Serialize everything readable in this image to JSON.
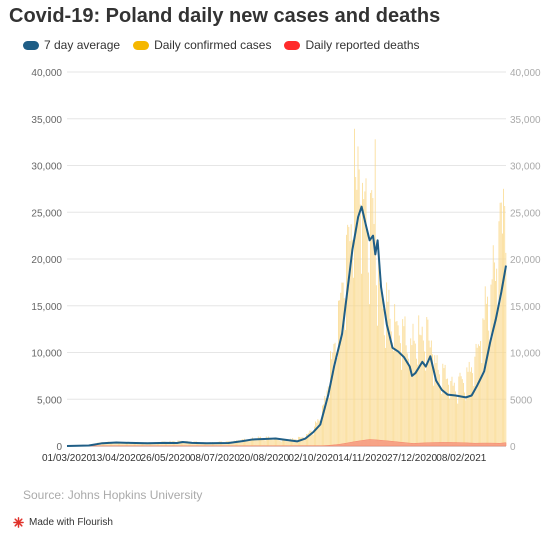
{
  "title": "Covid-19: Poland daily new cases and deaths",
  "source": "Source: Johns Hopkins University",
  "branding": "Made with Flourish",
  "colors": {
    "avg": "#1f5e86",
    "cases": "#f5b700",
    "cases_fill": "#f9d88b",
    "deaths": "#ff2b2b",
    "deaths_fill": "#f79c82"
  },
  "chart_data": {
    "type": "bar",
    "legend": [
      "7 day average",
      "Daily confirmed cases",
      "Daily reported deaths"
    ],
    "ylim": [
      0,
      40000
    ],
    "y_ticks_left": [
      "0",
      "5,000",
      "10,000",
      "15,000",
      "20,000",
      "25,000",
      "30,000",
      "35,000",
      "40,000"
    ],
    "y_ticks_right": [
      "0",
      "5000",
      "10,000",
      "15,000",
      "20,000",
      "25,000",
      "30,000",
      "35,000",
      "40,000"
    ],
    "x_ticks": [
      "01/03/2020",
      "13/04/2020",
      "26/05/2020",
      "08/07/2020",
      "20/08/2020",
      "02/10/2020",
      "14/11/2020",
      "27/12/2020",
      "08/02/2021"
    ],
    "x_start": "2020-03-01",
    "x_end": "2021-03-19",
    "series": [
      {
        "name": "7 day average",
        "type": "line",
        "points": [
          [
            "2020-03-01",
            0
          ],
          [
            "2020-03-20",
            50
          ],
          [
            "2020-04-01",
            300
          ],
          [
            "2020-04-13",
            380
          ],
          [
            "2020-04-25",
            330
          ],
          [
            "2020-05-10",
            300
          ],
          [
            "2020-05-26",
            340
          ],
          [
            "2020-06-05",
            320
          ],
          [
            "2020-06-10",
            430
          ],
          [
            "2020-06-18",
            330
          ],
          [
            "2020-07-01",
            300
          ],
          [
            "2020-07-20",
            320
          ],
          [
            "2020-08-01",
            520
          ],
          [
            "2020-08-10",
            700
          ],
          [
            "2020-08-20",
            750
          ],
          [
            "2020-08-30",
            800
          ],
          [
            "2020-09-08",
            650
          ],
          [
            "2020-09-18",
            500
          ],
          [
            "2020-09-25",
            800
          ],
          [
            "2020-10-02",
            1500
          ],
          [
            "2020-10-08",
            2300
          ],
          [
            "2020-10-15",
            5500
          ],
          [
            "2020-10-20",
            8500
          ],
          [
            "2020-10-27",
            12000
          ],
          [
            "2020-11-01",
            17000
          ],
          [
            "2020-11-05",
            21000
          ],
          [
            "2020-11-10",
            24500
          ],
          [
            "2020-11-13",
            25600
          ],
          [
            "2020-11-17",
            23500
          ],
          [
            "2020-11-20",
            22000
          ],
          [
            "2020-11-23",
            22500
          ],
          [
            "2020-11-25",
            20500
          ],
          [
            "2020-11-27",
            22000
          ],
          [
            "2020-11-30",
            17000
          ],
          [
            "2020-12-05",
            13000
          ],
          [
            "2020-12-10",
            10500
          ],
          [
            "2020-12-15",
            10100
          ],
          [
            "2020-12-20",
            9500
          ],
          [
            "2020-12-25",
            8500
          ],
          [
            "2020-12-27",
            7500
          ],
          [
            "2020-12-30",
            7800
          ],
          [
            "2021-01-05",
            9000
          ],
          [
            "2021-01-08",
            8500
          ],
          [
            "2021-01-12",
            9600
          ],
          [
            "2021-01-17",
            7000
          ],
          [
            "2021-01-22",
            6000
          ],
          [
            "2021-01-27",
            5500
          ],
          [
            "2021-02-03",
            5400
          ],
          [
            "2021-02-12",
            5200
          ],
          [
            "2021-02-17",
            5400
          ],
          [
            "2021-02-22",
            6500
          ],
          [
            "2021-02-28",
            8000
          ],
          [
            "2021-03-05",
            11000
          ],
          [
            "2021-03-10",
            13500
          ],
          [
            "2021-03-15",
            16500
          ],
          [
            "2021-03-19",
            19300
          ]
        ]
      },
      {
        "name": "Daily confirmed cases",
        "type": "bar",
        "peak": [
          "2020-11-25",
          32800
        ],
        "anchors": [
          [
            "2020-03-01",
            0
          ],
          [
            "2020-03-20",
            80
          ],
          [
            "2020-04-01",
            380
          ],
          [
            "2020-04-13",
            400
          ],
          [
            "2020-05-10",
            330
          ],
          [
            "2020-06-10",
            500
          ],
          [
            "2020-07-01",
            300
          ],
          [
            "2020-08-01",
            600
          ],
          [
            "2020-08-20",
            900
          ],
          [
            "2020-09-10",
            600
          ],
          [
            "2020-09-25",
            1000
          ],
          [
            "2020-10-02",
            1800
          ],
          [
            "2020-10-10",
            3500
          ],
          [
            "2020-10-17",
            8000
          ],
          [
            "2020-10-24",
            13000
          ],
          [
            "2020-10-31",
            20000
          ],
          [
            "2020-11-07",
            27800
          ],
          [
            "2020-11-12",
            27000
          ],
          [
            "2020-11-17",
            24500
          ],
          [
            "2020-11-24",
            22000
          ],
          [
            "2020-12-01",
            15000
          ],
          [
            "2020-12-10",
            13000
          ],
          [
            "2020-12-18",
            12500
          ],
          [
            "2020-12-27",
            10500
          ],
          [
            "2021-01-05",
            12000
          ],
          [
            "2021-01-12",
            11000
          ],
          [
            "2021-01-20",
            7500
          ],
          [
            "2021-02-01",
            6500
          ],
          [
            "2021-02-10",
            6800
          ],
          [
            "2021-02-20",
            9000
          ],
          [
            "2021-03-01",
            14000
          ],
          [
            "2021-03-08",
            17500
          ],
          [
            "2021-03-13",
            21000
          ],
          [
            "2021-03-19",
            27300
          ]
        ]
      },
      {
        "name": "Daily reported deaths",
        "type": "area",
        "anchors": [
          [
            "2020-03-01",
            0
          ],
          [
            "2020-04-15",
            25
          ],
          [
            "2020-09-01",
            15
          ],
          [
            "2020-10-10",
            40
          ],
          [
            "2020-10-24",
            180
          ],
          [
            "2020-11-07",
            400
          ],
          [
            "2020-11-20",
            560
          ],
          [
            "2020-12-05",
            480
          ],
          [
            "2020-12-25",
            380
          ],
          [
            "2021-01-20",
            330
          ],
          [
            "2021-02-20",
            260
          ],
          [
            "2021-03-19",
            420
          ]
        ]
      }
    ]
  }
}
